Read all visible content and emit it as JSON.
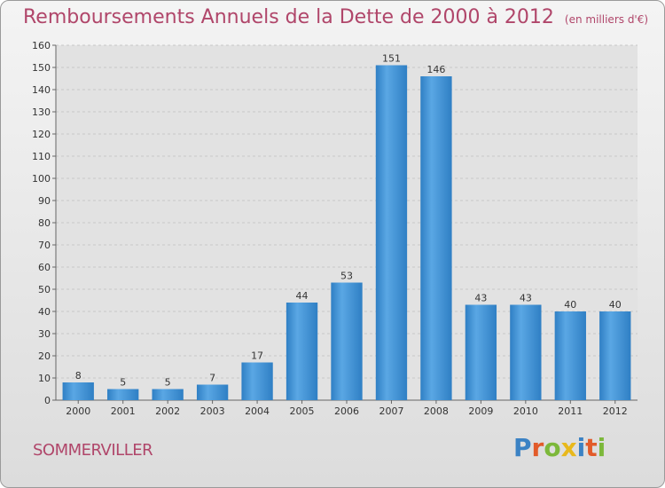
{
  "title": "Remboursements Annuels de la Dette de 2000 à 2012",
  "unit_label": "(en milliers d'€)",
  "town": "SOMMERVILLER",
  "logo": {
    "letters": [
      {
        "ch": "P",
        "color": "#3b82c4"
      },
      {
        "ch": "r",
        "color": "#e25b2a"
      },
      {
        "ch": "o",
        "color": "#7cb83a"
      },
      {
        "ch": "x",
        "color": "#e8b81c"
      },
      {
        "ch": "i",
        "color": "#3b82c4"
      },
      {
        "ch": "t",
        "color": "#e25b2a"
      },
      {
        "ch": "i",
        "color": "#7cb83a"
      }
    ]
  },
  "colors": {
    "bar_light": "#5aa7e4",
    "bar_dark": "#2f7fc4",
    "grid": "#c8c8c8",
    "title": "#b0466a"
  },
  "chart_data": {
    "type": "bar",
    "categories": [
      "2000",
      "2001",
      "2002",
      "2003",
      "2004",
      "2005",
      "2006",
      "2007",
      "2008",
      "2009",
      "2010",
      "2011",
      "2012"
    ],
    "values": [
      8,
      5,
      5,
      7,
      17,
      44,
      53,
      151,
      146,
      43,
      43,
      40,
      40
    ],
    "ylim": [
      0,
      160
    ],
    "yticks": [
      0,
      10,
      20,
      30,
      40,
      50,
      60,
      70,
      80,
      90,
      100,
      110,
      120,
      130,
      140,
      150,
      160
    ],
    "grid": true
  }
}
